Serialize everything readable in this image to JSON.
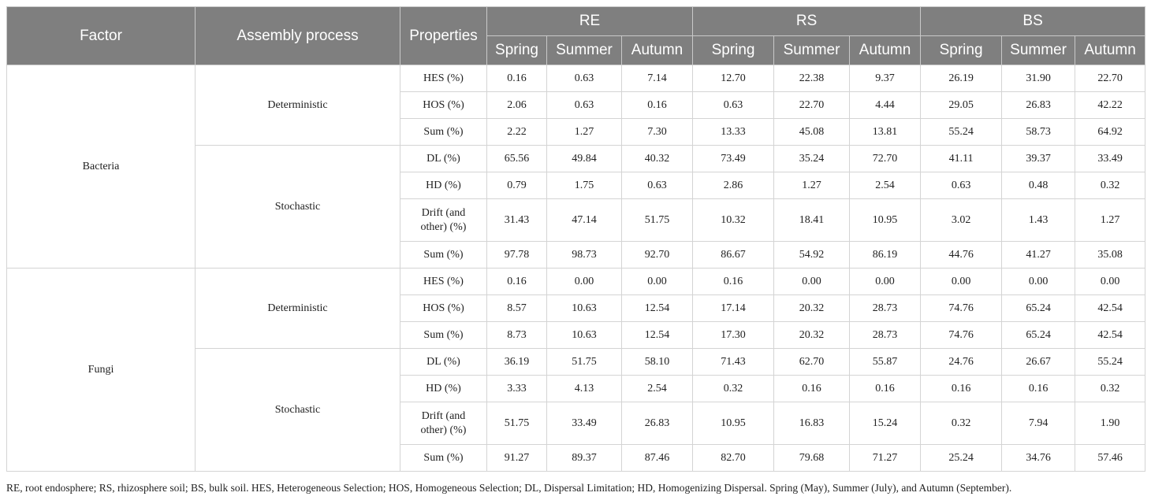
{
  "header": {
    "factor": "Factor",
    "assembly_process": "Assembly process",
    "properties": "Properties",
    "groups": [
      "RE",
      "RS",
      "BS"
    ],
    "seasons": [
      "Spring",
      "Summer",
      "Autumn"
    ]
  },
  "bacteria": {
    "label": "Bacteria",
    "deterministic": {
      "label": "Deterministic",
      "rows": [
        {
          "prop": "HES (%)",
          "values": [
            "0.16",
            "0.63",
            "7.14",
            "12.70",
            "22.38",
            "9.37",
            "26.19",
            "31.90",
            "22.70"
          ]
        },
        {
          "prop": "HOS (%)",
          "values": [
            "2.06",
            "0.63",
            "0.16",
            "0.63",
            "22.70",
            "4.44",
            "29.05",
            "26.83",
            "42.22"
          ]
        },
        {
          "prop": "Sum (%)",
          "values": [
            "2.22",
            "1.27",
            "7.30",
            "13.33",
            "45.08",
            "13.81",
            "55.24",
            "58.73",
            "64.92"
          ]
        }
      ]
    },
    "stochastic": {
      "label": "Stochastic",
      "rows": [
        {
          "prop": "DL (%)",
          "values": [
            "65.56",
            "49.84",
            "40.32",
            "73.49",
            "35.24",
            "72.70",
            "41.11",
            "39.37",
            "33.49"
          ]
        },
        {
          "prop": "HD (%)",
          "values": [
            "0.79",
            "1.75",
            "0.63",
            "2.86",
            "1.27",
            "2.54",
            "0.63",
            "0.48",
            "0.32"
          ]
        },
        {
          "prop": "Drift (and other) (%)",
          "prop_line1": "Drift (and",
          "prop_line2": "other) (%)",
          "values": [
            "31.43",
            "47.14",
            "51.75",
            "10.32",
            "18.41",
            "10.95",
            "3.02",
            "1.43",
            "1.27"
          ]
        },
        {
          "prop": "Sum (%)",
          "values": [
            "97.78",
            "98.73",
            "92.70",
            "86.67",
            "54.92",
            "86.19",
            "44.76",
            "41.27",
            "35.08"
          ]
        }
      ]
    }
  },
  "fungi": {
    "label": "Fungi",
    "deterministic": {
      "label": "Deterministic",
      "rows": [
        {
          "prop": "HES (%)",
          "values": [
            "0.16",
            "0.00",
            "0.00",
            "0.16",
            "0.00",
            "0.00",
            "0.00",
            "0.00",
            "0.00"
          ]
        },
        {
          "prop": "HOS (%)",
          "values": [
            "8.57",
            "10.63",
            "12.54",
            "17.14",
            "20.32",
            "28.73",
            "74.76",
            "65.24",
            "42.54"
          ]
        },
        {
          "prop": "Sum (%)",
          "values": [
            "8.73",
            "10.63",
            "12.54",
            "17.30",
            "20.32",
            "28.73",
            "74.76",
            "65.24",
            "42.54"
          ]
        }
      ]
    },
    "stochastic": {
      "label": "Stochastic",
      "rows": [
        {
          "prop": "DL (%)",
          "values": [
            "36.19",
            "51.75",
            "58.10",
            "71.43",
            "62.70",
            "55.87",
            "24.76",
            "26.67",
            "55.24"
          ]
        },
        {
          "prop": "HD (%)",
          "values": [
            "3.33",
            "4.13",
            "2.54",
            "0.32",
            "0.16",
            "0.16",
            "0.16",
            "0.16",
            "0.32"
          ]
        },
        {
          "prop": "Drift (and other) (%)",
          "prop_line1": "Drift (and",
          "prop_line2": "other) (%)",
          "values": [
            "51.75",
            "33.49",
            "26.83",
            "10.95",
            "16.83",
            "15.24",
            "0.32",
            "7.94",
            "1.90"
          ]
        },
        {
          "prop": "Sum (%)",
          "values": [
            "91.27",
            "89.37",
            "87.46",
            "82.70",
            "79.68",
            "71.27",
            "25.24",
            "34.76",
            "57.46"
          ]
        }
      ]
    }
  },
  "footnote": "RE, root endosphere; RS, rhizosphere soil; BS, bulk soil. HES, Heterogeneous Selection; HOS, Homogeneous Selection; DL, Dispersal Limitation; HD, Homogenizing Dispersal. Spring (May), Summer (July), and Autumn (September)."
}
